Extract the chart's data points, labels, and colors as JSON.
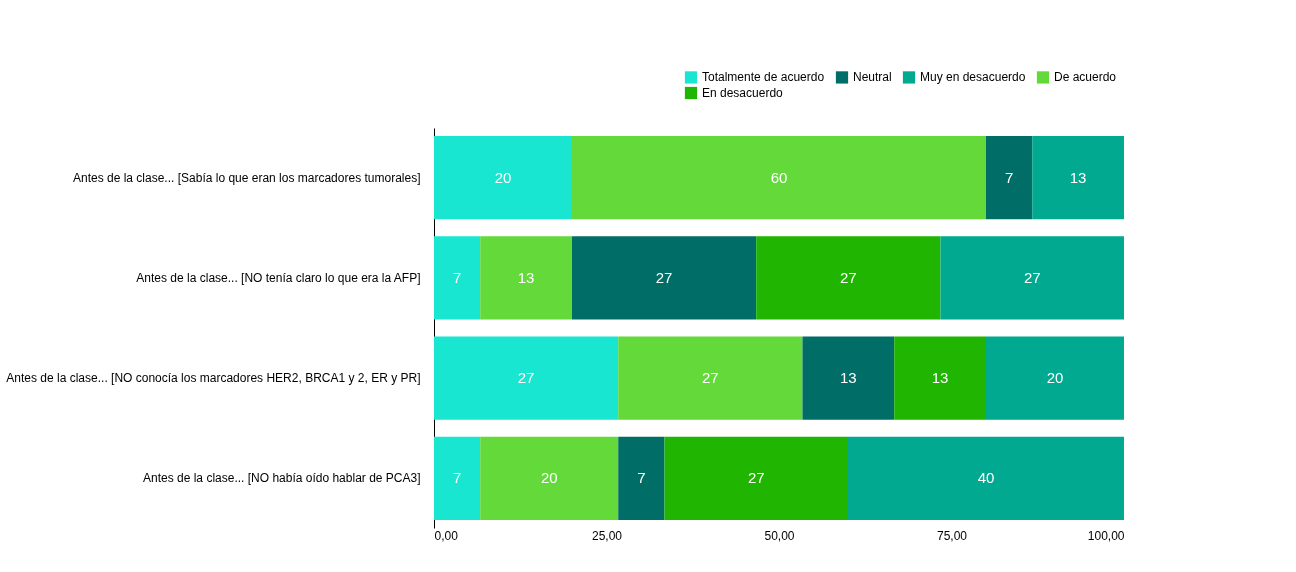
{
  "chart_data": {
    "type": "bar",
    "orientation": "horizontal",
    "stacked": true,
    "legend": "top right",
    "grid": false,
    "categories": [
      "Antes de la clase... [Sabía lo que eran los marcadores tumorales]",
      "Antes de la clase... [NO tenía claro lo que era la AFP]",
      "Antes de la clase... [NO conocía los marcadores HER2, BRCA1 y 2, ER y PR]",
      "Antes de la clase... [NO había oído hablar de PCA3]"
    ],
    "xlim": [
      0,
      100
    ],
    "xticks": [
      {
        "value": 0,
        "label": "0,00"
      },
      {
        "value": 25,
        "label": "25,00"
      },
      {
        "value": 50,
        "label": "50,00"
      },
      {
        "value": 75,
        "label": "75,00"
      },
      {
        "value": 100,
        "label": "100,00"
      }
    ],
    "series": [
      {
        "name": "Totalmente de acuerdo",
        "color": "#19e6d0",
        "values": [
          20,
          6.7,
          26.7,
          6.7
        ],
        "value_labels": [
          "20",
          "7",
          "27",
          "7"
        ]
      },
      {
        "name": "De acuerdo",
        "color": "#63d93a",
        "values": [
          60,
          13.3,
          26.7,
          20
        ],
        "value_labels": [
          "60",
          "13",
          "27",
          "20"
        ]
      },
      {
        "name": "Neutral",
        "color": "#006d66",
        "values": [
          6.7,
          26.7,
          13.3,
          6.7
        ],
        "value_labels": [
          "7",
          "27",
          "13",
          "7"
        ]
      },
      {
        "name": "En desacuerdo",
        "color": "#1fb500",
        "values": [
          null,
          26.7,
          13.3,
          26.6
        ],
        "value_labels": [
          null,
          "27",
          "13",
          "27"
        ]
      },
      {
        "name": "Muy en desacuerdo",
        "color": "#00a98f",
        "values": [
          13.3,
          26.6,
          20,
          40
        ],
        "value_labels": [
          "13",
          "27",
          "20",
          "40"
        ]
      }
    ]
  }
}
